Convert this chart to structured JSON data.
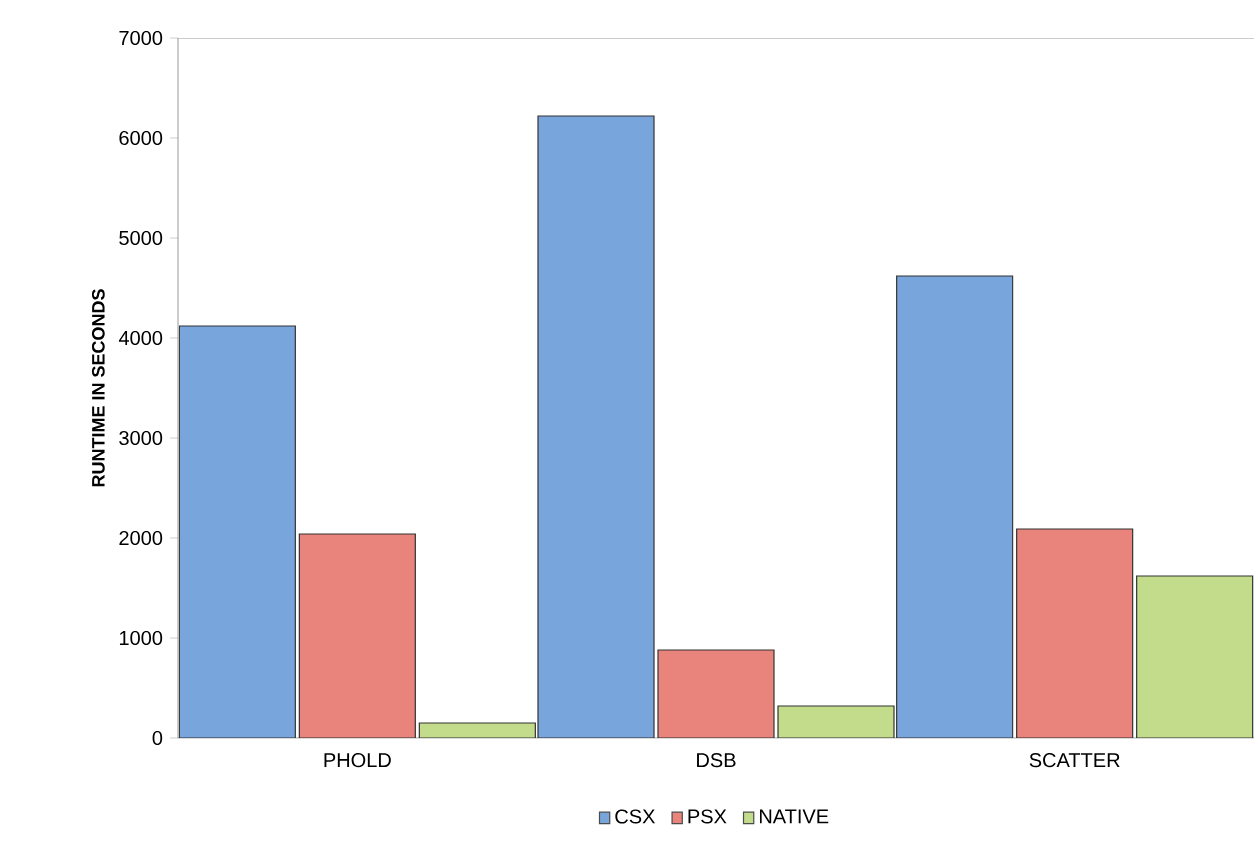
{
  "chart_data": {
    "type": "bar",
    "ylabel": "RUNTIME IN SECONDS",
    "categories": [
      "PHOLD",
      "DSB",
      "SCATTER"
    ],
    "series": [
      {
        "name": "CSX",
        "color": "#78a5dc",
        "values": [
          4120,
          6220,
          4620
        ]
      },
      {
        "name": "PSX",
        "color": "#e8847b",
        "values": [
          2040,
          880,
          2090
        ]
      },
      {
        "name": "NATIVE",
        "color": "#c3dc8c",
        "values": [
          150,
          320,
          1620
        ]
      }
    ],
    "ylim": [
      0,
      7000
    ],
    "yticks": [
      0,
      1000,
      2000,
      3000,
      4000,
      5000,
      6000,
      7000
    ],
    "grid": false,
    "legend": "bottom"
  }
}
